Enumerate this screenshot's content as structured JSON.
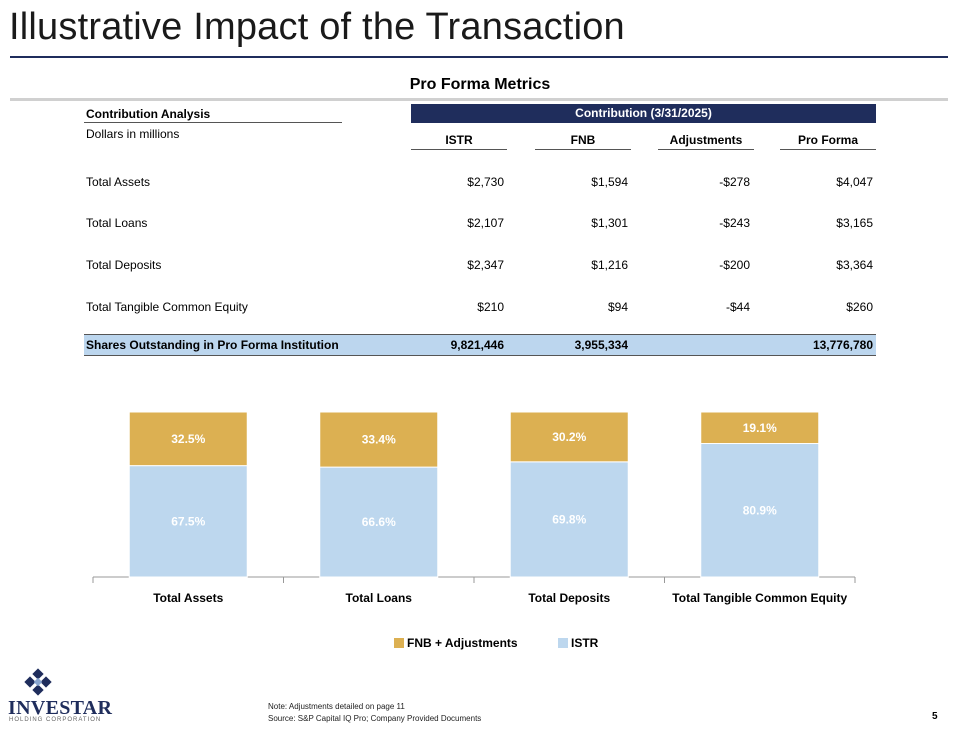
{
  "page": {
    "title": "Illustrative Impact of the Transaction",
    "subtitle": "Pro Forma Metrics",
    "page_number": "5"
  },
  "table": {
    "label_a": "Contribution Analysis",
    "label_b": "Dollars in millions",
    "group_header": "Contribution (3/31/2025)",
    "columns": [
      "ISTR",
      "FNB",
      "Adjustments",
      "Pro Forma"
    ],
    "rows": [
      {
        "label": "Total Assets",
        "values": [
          "$2,730",
          "$1,594",
          "-$278",
          "$4,047"
        ]
      },
      {
        "label": "Total Loans",
        "values": [
          "$2,107",
          "$1,301",
          "-$243",
          "$3,165"
        ]
      },
      {
        "label": "Total Deposits",
        "values": [
          "$2,347",
          "$1,216",
          "-$200",
          "$3,364"
        ]
      },
      {
        "label": "Total Tangible Common Equity",
        "values": [
          "$210",
          "$94",
          "-$44",
          "$260"
        ]
      }
    ],
    "shares_row": {
      "label": "Shares Outstanding in Pro Forma Institution",
      "values": [
        "9,821,446",
        "3,955,334",
        "",
        "13,776,780"
      ]
    }
  },
  "chart_data": {
    "type": "bar",
    "stacked": true,
    "categories": [
      "Total Assets",
      "Total Loans",
      "Total Deposits",
      "Total Tangible Common Equity"
    ],
    "series": [
      {
        "name": "ISTR",
        "values": [
          67.5,
          66.6,
          69.8,
          80.9
        ],
        "labels": [
          "67.5%",
          "66.6%",
          "69.8%",
          "80.9%"
        ],
        "color": "#bdd7ee"
      },
      {
        "name": "FNB + Adjustments",
        "values": [
          32.5,
          33.4,
          30.2,
          19.1
        ],
        "labels": [
          "32.5%",
          "33.4%",
          "30.2%",
          "19.1%"
        ],
        "color": "#dcb052"
      }
    ],
    "ylim": [
      0,
      100
    ],
    "legend_position": "bottom",
    "grid": false
  },
  "legend": {
    "items": [
      {
        "label": "FNB + Adjustments",
        "color": "#dcb052"
      },
      {
        "label": "ISTR",
        "color": "#bdd7ee"
      }
    ]
  },
  "logo": {
    "word": "INVESTAR",
    "sub": "HOLDING CORPORATION",
    "icon": "investar-logo-icon"
  },
  "notes": {
    "line1": "Note: Adjustments detailed on page 11",
    "line2": "Source: S&P Capital IQ Pro; Company Provided Documents"
  },
  "colors": {
    "navy": "#1f2d5c",
    "light_blue": "#bdd7ee",
    "gold": "#dcb052"
  }
}
